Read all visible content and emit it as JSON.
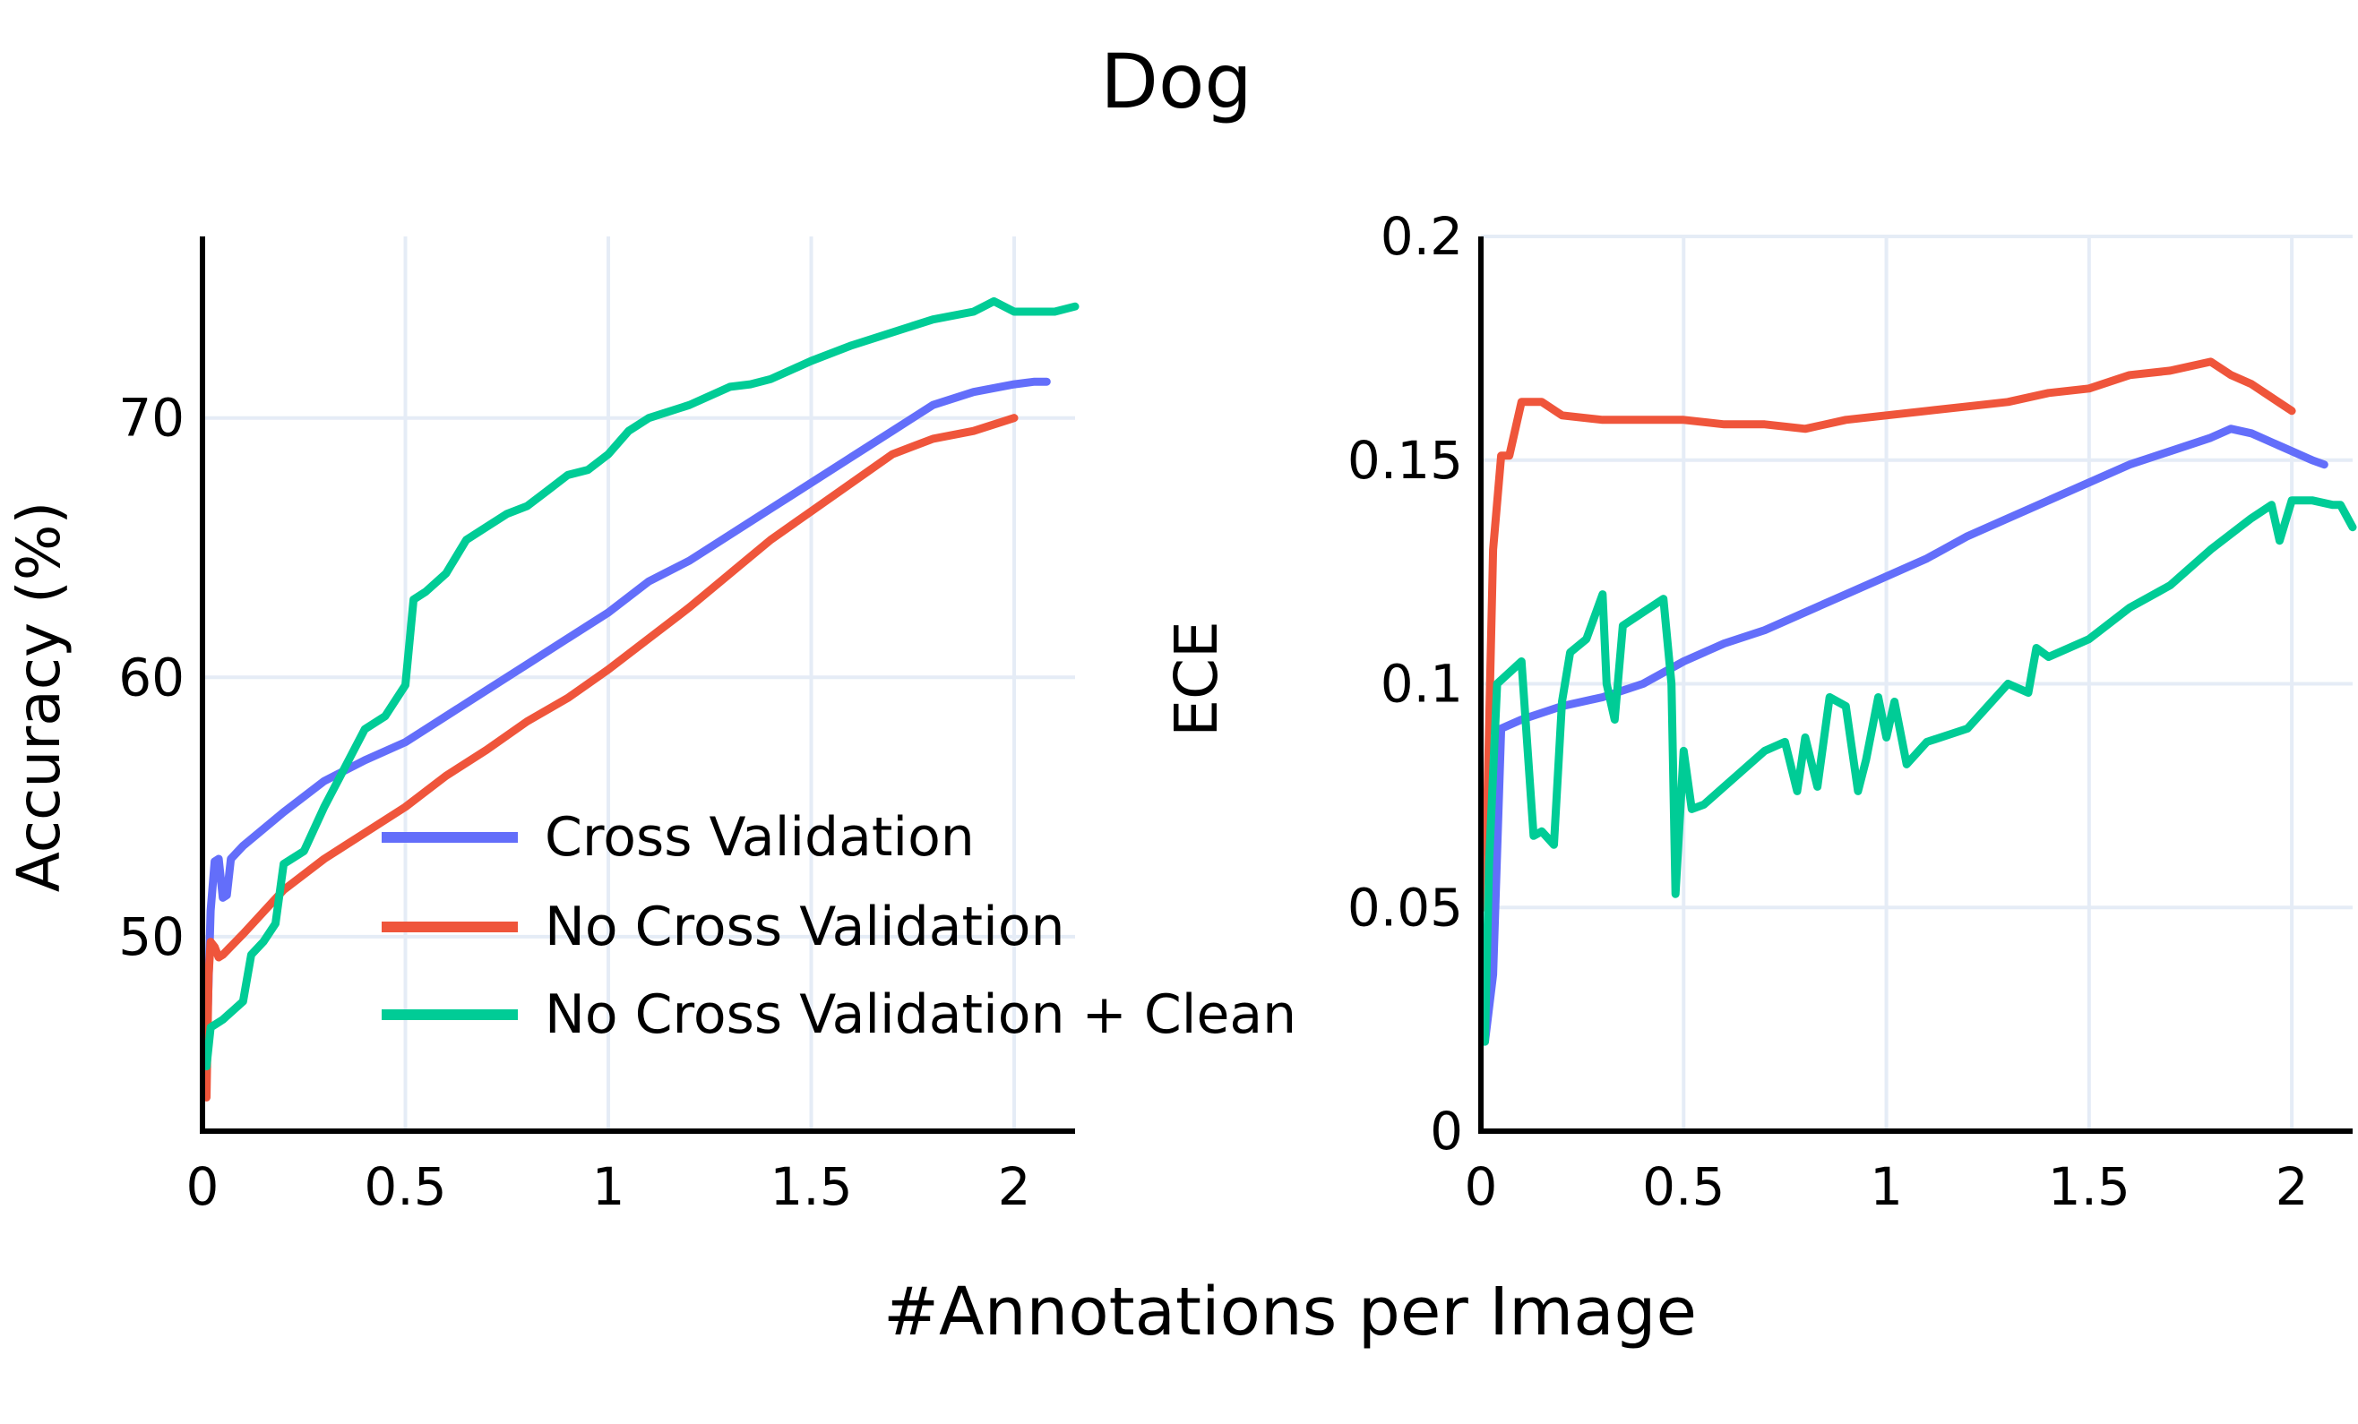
{
  "figure": {
    "title": "Dog",
    "xlabel": "#Annotations per Image"
  },
  "colors": {
    "cross_validation": "#636efa",
    "no_cross_validation": "#ef553b",
    "no_cross_validation_clean": "#00cc96",
    "grid": "#e5ecf6",
    "axis": "#000000"
  },
  "legend": {
    "placement": "lower-right of left panel",
    "entries": [
      "Cross Validation",
      "No Cross Validation",
      "No Cross Validation + Clean"
    ]
  },
  "chart_data": [
    {
      "type": "line",
      "title": "",
      "xlabel": "",
      "ylabel": "Accuracy (%)",
      "xlim": [
        0,
        2.15
      ],
      "ylim": [
        42.5,
        77
      ],
      "grid": true,
      "x_ticks": [
        0,
        0.5,
        1,
        1.5,
        2
      ],
      "x_tick_labels": [
        "0",
        "0.5",
        "1",
        "1.5",
        "2"
      ],
      "y_ticks": [
        50,
        60,
        70
      ],
      "y_tick_labels": [
        "50",
        "60",
        "70"
      ],
      "series": [
        {
          "name": "Cross Validation",
          "color": "#636efa",
          "x": [
            0.01,
            0.02,
            0.03,
            0.04,
            0.05,
            0.06,
            0.07,
            0.1,
            0.2,
            0.3,
            0.4,
            0.5,
            0.6,
            0.7,
            0.8,
            0.9,
            1.0,
            1.1,
            1.2,
            1.3,
            1.4,
            1.5,
            1.6,
            1.7,
            1.8,
            1.9,
            2.0,
            2.05,
            2.08
          ],
          "y": [
            45.5,
            51.0,
            52.9,
            53.0,
            51.5,
            51.6,
            53.0,
            53.5,
            54.8,
            56.0,
            56.8,
            57.5,
            58.5,
            59.5,
            60.5,
            61.5,
            62.5,
            63.7,
            64.5,
            65.5,
            66.5,
            67.5,
            68.5,
            69.5,
            70.5,
            71.0,
            71.3,
            71.4,
            71.4
          ]
        },
        {
          "name": "No Cross Validation",
          "color": "#ef553b",
          "x": [
            0.01,
            0.015,
            0.02,
            0.03,
            0.04,
            0.05,
            0.1,
            0.2,
            0.3,
            0.4,
            0.5,
            0.6,
            0.7,
            0.8,
            0.9,
            1.0,
            1.1,
            1.2,
            1.3,
            1.4,
            1.5,
            1.6,
            1.7,
            1.8,
            1.9,
            2.0
          ],
          "y": [
            43.8,
            48.5,
            49.8,
            49.6,
            49.2,
            49.3,
            50.1,
            51.8,
            53.0,
            54.0,
            55.0,
            56.2,
            57.2,
            58.3,
            59.2,
            60.3,
            61.5,
            62.7,
            64.0,
            65.3,
            66.4,
            67.5,
            68.6,
            69.2,
            69.5,
            70.0
          ]
        },
        {
          "name": "No Cross Validation + Clean",
          "color": "#00cc96",
          "x": [
            0.01,
            0.02,
            0.03,
            0.05,
            0.1,
            0.12,
            0.15,
            0.18,
            0.2,
            0.25,
            0.3,
            0.35,
            0.4,
            0.45,
            0.5,
            0.52,
            0.55,
            0.6,
            0.65,
            0.7,
            0.75,
            0.8,
            0.85,
            0.9,
            0.95,
            1.0,
            1.05,
            1.1,
            1.2,
            1.3,
            1.35,
            1.4,
            1.5,
            1.6,
            1.7,
            1.8,
            1.9,
            1.95,
            2.0,
            2.05,
            2.1,
            2.15
          ],
          "y": [
            45.0,
            46.5,
            46.6,
            46.8,
            47.5,
            49.3,
            49.8,
            50.5,
            52.8,
            53.3,
            55.0,
            56.5,
            58.0,
            58.5,
            59.7,
            63.0,
            63.3,
            64.0,
            65.3,
            65.8,
            66.3,
            66.6,
            67.2,
            67.8,
            68.0,
            68.6,
            69.5,
            70.0,
            70.5,
            71.2,
            71.3,
            71.5,
            72.2,
            72.8,
            73.3,
            73.8,
            74.1,
            74.5,
            74.1,
            74.1,
            74.1,
            74.3
          ]
        }
      ]
    },
    {
      "type": "line",
      "title": "",
      "xlabel": "",
      "ylabel": "ECE",
      "xlim": [
        0,
        2.15
      ],
      "ylim": [
        0,
        0.2
      ],
      "grid": true,
      "x_ticks": [
        0,
        0.5,
        1,
        1.5,
        2
      ],
      "x_tick_labels": [
        "0",
        "0.5",
        "1",
        "1.5",
        "2"
      ],
      "y_ticks": [
        0,
        0.05,
        0.1,
        0.15,
        0.2
      ],
      "y_tick_labels": [
        "0",
        "0.05",
        "0.1",
        "0.15",
        "0.2"
      ],
      "series": [
        {
          "name": "Cross Validation",
          "color": "#636efa",
          "x": [
            0.01,
            0.03,
            0.05,
            0.1,
            0.2,
            0.3,
            0.4,
            0.5,
            0.6,
            0.7,
            0.8,
            0.9,
            1.0,
            1.1,
            1.2,
            1.3,
            1.4,
            1.5,
            1.6,
            1.7,
            1.8,
            1.85,
            1.9,
            2.0,
            2.05,
            2.08
          ],
          "y": [
            0.02,
            0.035,
            0.09,
            0.092,
            0.095,
            0.097,
            0.1,
            0.105,
            0.109,
            0.112,
            0.116,
            0.12,
            0.124,
            0.128,
            0.133,
            0.137,
            0.141,
            0.145,
            0.149,
            0.152,
            0.155,
            0.157,
            0.156,
            0.152,
            0.15,
            0.149
          ]
        },
        {
          "name": "No Cross Validation",
          "color": "#ef553b",
          "x": [
            0.01,
            0.03,
            0.05,
            0.07,
            0.1,
            0.15,
            0.2,
            0.3,
            0.4,
            0.5,
            0.6,
            0.7,
            0.8,
            0.9,
            1.0,
            1.1,
            1.2,
            1.3,
            1.4,
            1.5,
            1.6,
            1.7,
            1.8,
            1.85,
            1.9,
            2.0
          ],
          "y": [
            0.05,
            0.13,
            0.151,
            0.151,
            0.163,
            0.163,
            0.16,
            0.159,
            0.159,
            0.159,
            0.158,
            0.158,
            0.157,
            0.159,
            0.16,
            0.161,
            0.162,
            0.163,
            0.165,
            0.166,
            0.169,
            0.17,
            0.172,
            0.169,
            0.167,
            0.161
          ]
        },
        {
          "name": "No Cross Validation + Clean",
          "color": "#00cc96",
          "x": [
            0.01,
            0.02,
            0.04,
            0.1,
            0.13,
            0.15,
            0.18,
            0.2,
            0.22,
            0.26,
            0.3,
            0.31,
            0.33,
            0.35,
            0.4,
            0.45,
            0.47,
            0.48,
            0.5,
            0.52,
            0.55,
            0.6,
            0.7,
            0.75,
            0.78,
            0.8,
            0.83,
            0.86,
            0.9,
            0.93,
            0.95,
            0.98,
            1.0,
            1.02,
            1.05,
            1.1,
            1.2,
            1.3,
            1.35,
            1.37,
            1.4,
            1.5,
            1.6,
            1.7,
            1.8,
            1.9,
            1.95,
            1.97,
            2.0,
            2.05,
            2.1,
            2.12,
            2.15
          ],
          "y": [
            0.02,
            0.06,
            0.1,
            0.105,
            0.066,
            0.067,
            0.064,
            0.096,
            0.107,
            0.11,
            0.12,
            0.1,
            0.092,
            0.113,
            0.116,
            0.119,
            0.1,
            0.053,
            0.085,
            0.072,
            0.073,
            0.077,
            0.085,
            0.087,
            0.076,
            0.088,
            0.077,
            0.097,
            0.095,
            0.076,
            0.083,
            0.097,
            0.088,
            0.096,
            0.082,
            0.087,
            0.09,
            0.1,
            0.098,
            0.108,
            0.106,
            0.11,
            0.117,
            0.122,
            0.13,
            0.137,
            0.14,
            0.132,
            0.141,
            0.141,
            0.14,
            0.14,
            0.135
          ]
        }
      ]
    }
  ]
}
